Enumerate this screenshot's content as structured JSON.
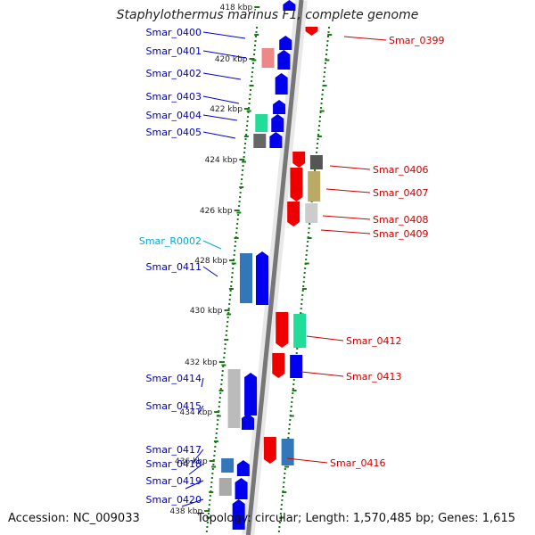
{
  "title": "Staphylothermus marinus F1, complete genome",
  "footer": {
    "accession": "Accession: NC_009033",
    "summary": "Topology: circular; Length: 1,570,485 bp; Genes: 1,615"
  },
  "colors": {
    "forward_label": "#0000cc",
    "reverse_label": "#cc0000",
    "rna_label": "#00aadd",
    "backbone": "#777777",
    "tick": "#1a7a1a"
  },
  "kbp_labels": [
    "418 kbp",
    "420 kbp",
    "422 kbp",
    "424 kbp",
    "426 kbp",
    "428 kbp",
    "430 kbp",
    "432 kbp",
    "434 kbp",
    "436 kbp",
    "438 kbp"
  ],
  "forward_genes": [
    "Smar_0400",
    "Smar_0401",
    "Smar_0402",
    "Smar_0403",
    "Smar_0404",
    "Smar_0405",
    "Smar_R0002",
    "Smar_0411",
    "Smar_0414",
    "Smar_0415",
    "Smar_0417",
    "Smar_0418",
    "Smar_0419",
    "Smar_0420"
  ],
  "reverse_genes": [
    "Smar_0399",
    "Smar_0406",
    "Smar_0407",
    "Smar_0408",
    "Smar_0409",
    "Smar_0412",
    "Smar_0413",
    "Smar_0416"
  ]
}
